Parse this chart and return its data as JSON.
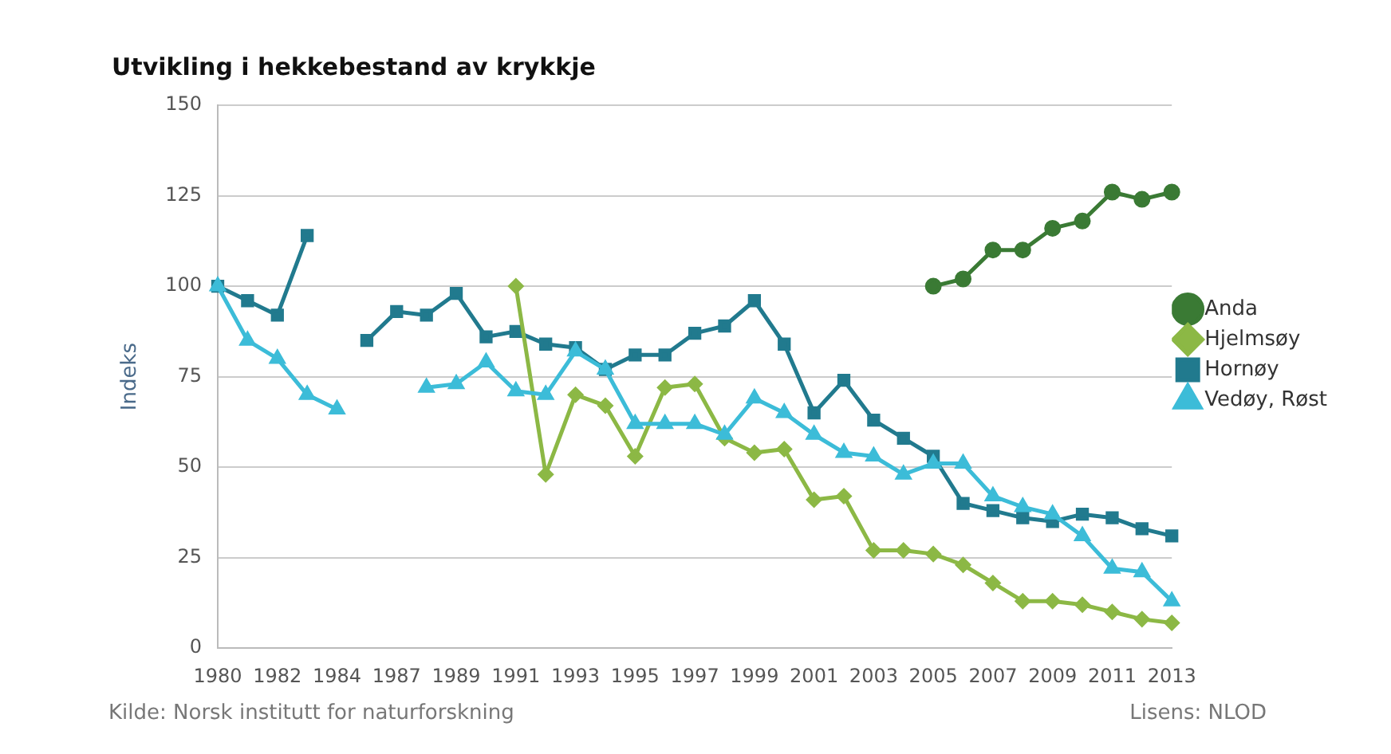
{
  "chart_data": {
    "type": "line",
    "title": "Utvikling i hekkebestand av krykkje",
    "ylabel": "Indeks",
    "categories": [
      "1980",
      null,
      "1982",
      null,
      "1984",
      null,
      "1987",
      null,
      "1989",
      null,
      "1991",
      null,
      "1993",
      null,
      "1995",
      null,
      "1997",
      null,
      "1999",
      null,
      "2001",
      null,
      "2003",
      null,
      "2005",
      null,
      "2007",
      null,
      "2009",
      null,
      "2011",
      null,
      "2013"
    ],
    "series": [
      {
        "name": "Anda",
        "color": "#3a7a34",
        "marker": "circle",
        "values": [
          null,
          null,
          null,
          null,
          null,
          null,
          null,
          null,
          null,
          null,
          null,
          null,
          null,
          null,
          null,
          null,
          null,
          null,
          null,
          null,
          null,
          null,
          null,
          null,
          100,
          102,
          110,
          110,
          116,
          118,
          126,
          124,
          126
        ]
      },
      {
        "name": "Hjelmsøy",
        "color": "#8cb845",
        "marker": "diamond",
        "values": [
          null,
          null,
          null,
          null,
          null,
          null,
          null,
          null,
          null,
          null,
          100,
          48,
          70,
          67,
          53,
          72,
          73,
          58,
          54,
          55,
          41,
          42,
          27,
          27,
          26,
          23,
          18,
          13,
          13,
          12,
          10,
          8,
          7
        ]
      },
      {
        "name": "Hornøy",
        "color": "#217a8e",
        "marker": "square",
        "values": [
          100,
          96,
          92,
          114,
          null,
          85,
          93,
          92,
          98,
          86,
          87.5,
          84,
          83,
          77,
          81,
          81,
          87,
          89,
          96,
          84,
          65,
          74,
          63,
          58,
          53,
          40,
          38,
          36,
          35,
          37,
          36,
          33,
          31
        ]
      },
      {
        "name": "Vedøy, Røst",
        "color": "#3cbcd8",
        "marker": "triangle",
        "values": [
          100,
          85,
          80,
          70,
          66,
          null,
          null,
          72,
          73,
          79,
          71,
          70,
          82,
          77,
          62,
          62,
          62,
          59,
          69,
          65,
          59,
          54,
          53,
          48,
          51,
          51,
          42,
          39,
          37,
          31,
          22,
          21,
          13
        ]
      }
    ],
    "ylim": [
      0,
      150
    ],
    "yticks": [
      0,
      25,
      50,
      75,
      100,
      125,
      150
    ],
    "grid": "y",
    "legend": "right",
    "annotations": [
      "Kilde: Norsk institutt for naturforskning",
      "Lisens: NLOD"
    ]
  }
}
